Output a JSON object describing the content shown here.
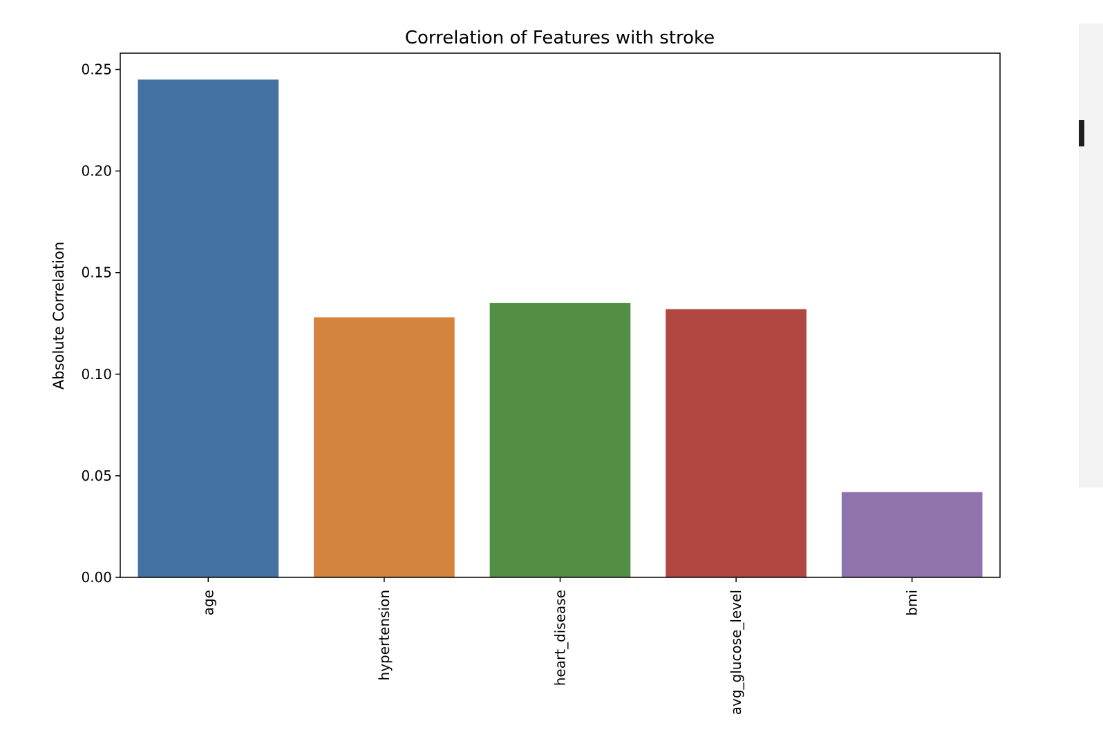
{
  "chart_data": {
    "type": "bar",
    "title": "Correlation of Features with stroke",
    "xlabel": "",
    "ylabel": "Absolute Correlation",
    "categories": [
      "age",
      "hypertension",
      "heart_disease",
      "avg_glucose_level",
      "bmi"
    ],
    "values": [
      0.245,
      0.128,
      0.135,
      0.132,
      0.042
    ],
    "colors": [
      "#4472a0",
      "#d4843f",
      "#528f45",
      "#b04743",
      "#8f73ad"
    ],
    "ylim": [
      0,
      0.258
    ],
    "yticks": [
      "0.00",
      "0.05",
      "0.10",
      "0.15",
      "0.20",
      "0.25"
    ],
    "ytick_values": [
      0,
      0.05,
      0.1,
      0.15,
      0.2,
      0.25
    ],
    "grid": false,
    "legend": "none"
  }
}
